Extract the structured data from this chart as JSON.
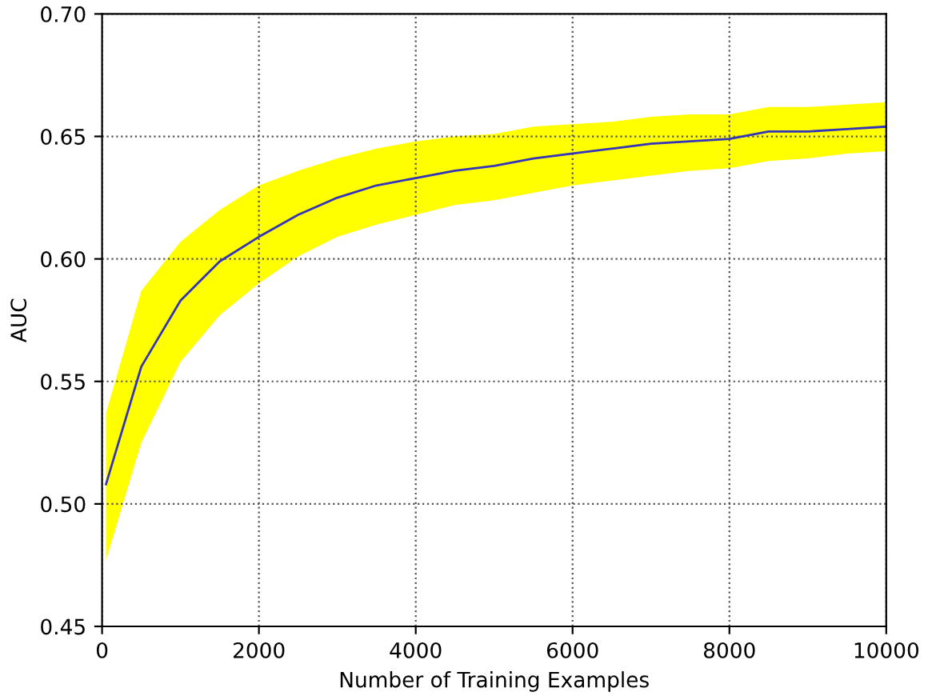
{
  "chart_data": {
    "type": "line",
    "xlabel": "Number of Training Examples",
    "ylabel": "AUC",
    "x": [
      50,
      500,
      1000,
      1500,
      2000,
      2500,
      3000,
      3500,
      4000,
      4500,
      5000,
      5500,
      6000,
      6500,
      7000,
      7500,
      8000,
      8500,
      9000,
      9500,
      10000
    ],
    "series": [
      {
        "color": "#3333bb",
        "values": [
          0.508,
          0.556,
          0.583,
          0.599,
          0.609,
          0.618,
          0.625,
          0.63,
          0.633,
          0.636,
          0.638,
          0.641,
          0.643,
          0.645,
          0.647,
          0.648,
          0.649,
          0.652,
          0.652,
          0.653,
          0.654
        ],
        "upper": [
          0.537,
          0.587,
          0.607,
          0.62,
          0.63,
          0.636,
          0.641,
          0.645,
          0.648,
          0.65,
          0.651,
          0.654,
          0.655,
          0.656,
          0.658,
          0.659,
          0.659,
          0.662,
          0.662,
          0.663,
          0.664
        ],
        "lower": [
          0.477,
          0.525,
          0.558,
          0.577,
          0.59,
          0.601,
          0.609,
          0.614,
          0.618,
          0.622,
          0.624,
          0.627,
          0.63,
          0.632,
          0.634,
          0.636,
          0.637,
          0.64,
          0.641,
          0.643,
          0.644
        ]
      }
    ],
    "xlim": [
      0,
      10000
    ],
    "xticks": [
      0,
      2000,
      4000,
      6000,
      8000,
      10000
    ],
    "ylim": [
      0.45,
      0.7
    ],
    "yticks": [
      {
        "value": 0.45,
        "label": "0.45"
      },
      {
        "value": 0.5,
        "label": "0.50"
      },
      {
        "value": 0.55,
        "label": "0.55"
      },
      {
        "value": 0.6,
        "label": "0.60"
      },
      {
        "value": 0.65,
        "label": "0.65"
      },
      {
        "value": 0.7,
        "label": "0.70"
      }
    ],
    "grid": true,
    "line_style": "solid",
    "marker": "none"
  }
}
